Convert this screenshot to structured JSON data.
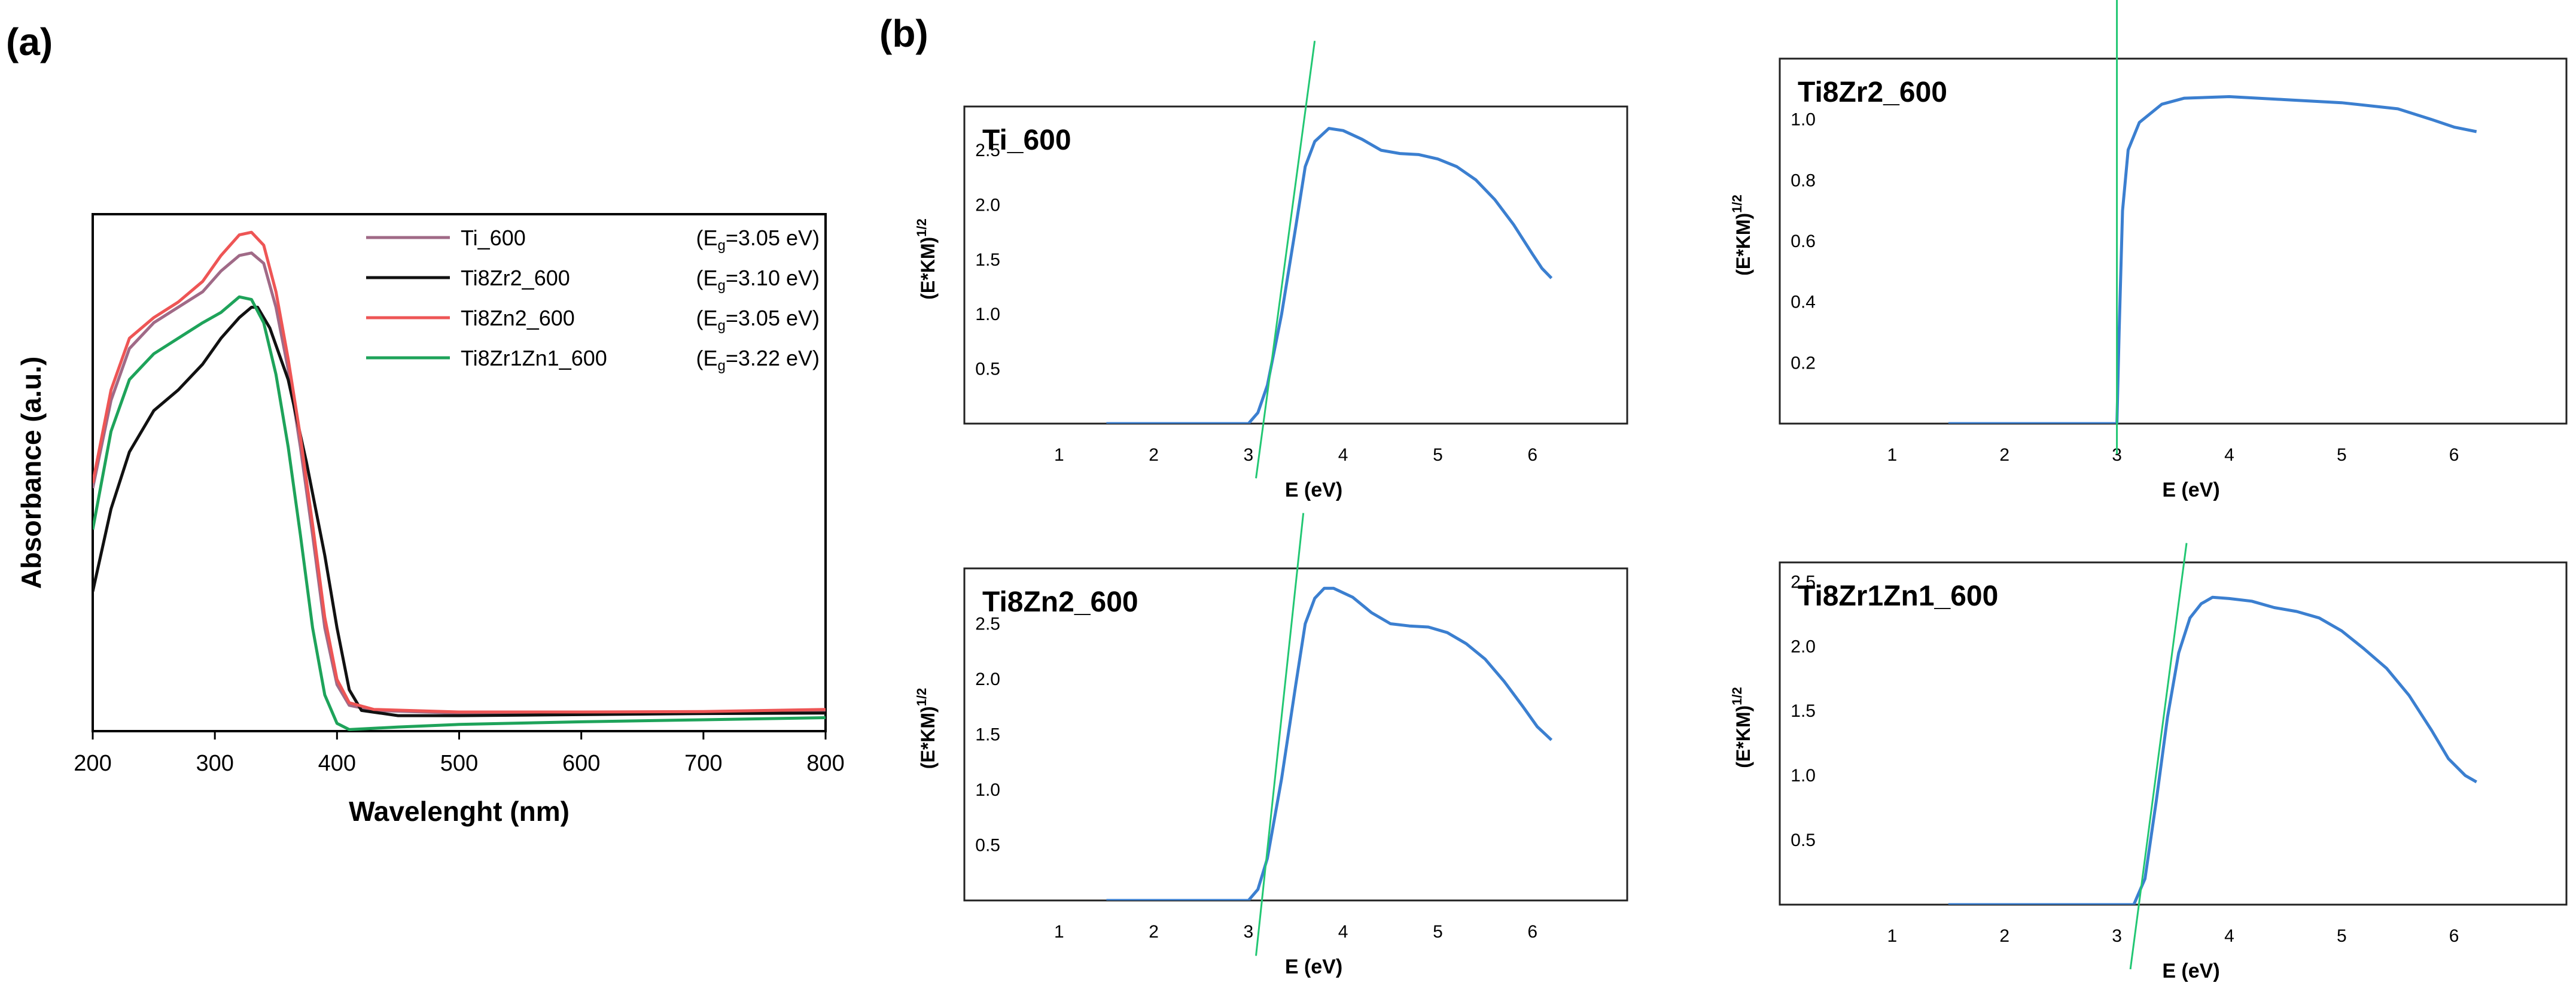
{
  "chart_data": [
    {
      "type": "line",
      "panel_label": "(a)",
      "xlabel": "Wavelenght (nm)",
      "ylabel": "Absorbance (a.u.)",
      "xlim": [
        200,
        800
      ],
      "ylim": [
        0,
        1
      ],
      "xticks": [
        200,
        300,
        400,
        500,
        600,
        700,
        800
      ],
      "legend_position": "top-right",
      "series": [
        {
          "name": "Ti_600",
          "eg_value": "3.05",
          "color": "#a06a87",
          "points": [
            [
              200,
              0.47
            ],
            [
              215,
              0.64
            ],
            [
              230,
              0.74
            ],
            [
              250,
              0.79
            ],
            [
              270,
              0.82
            ],
            [
              290,
              0.85
            ],
            [
              305,
              0.89
            ],
            [
              320,
              0.92
            ],
            [
              330,
              0.925
            ],
            [
              340,
              0.905
            ],
            [
              350,
              0.82
            ],
            [
              360,
              0.7
            ],
            [
              370,
              0.55
            ],
            [
              380,
              0.38
            ],
            [
              390,
              0.2
            ],
            [
              400,
              0.09
            ],
            [
              410,
              0.05
            ],
            [
              430,
              0.04
            ],
            [
              500,
              0.035
            ],
            [
              600,
              0.035
            ],
            [
              700,
              0.037
            ],
            [
              800,
              0.04
            ]
          ]
        },
        {
          "name": "Ti8Zr2_600",
          "eg_value": "3.10",
          "color": "#111111",
          "points": [
            [
              200,
              0.27
            ],
            [
              215,
              0.43
            ],
            [
              230,
              0.54
            ],
            [
              250,
              0.62
            ],
            [
              270,
              0.66
            ],
            [
              290,
              0.71
            ],
            [
              305,
              0.76
            ],
            [
              320,
              0.8
            ],
            [
              330,
              0.82
            ],
            [
              335,
              0.82
            ],
            [
              345,
              0.78
            ],
            [
              360,
              0.68
            ],
            [
              375,
              0.52
            ],
            [
              390,
              0.34
            ],
            [
              400,
              0.2
            ],
            [
              410,
              0.08
            ],
            [
              420,
              0.04
            ],
            [
              450,
              0.03
            ],
            [
              500,
              0.03
            ],
            [
              600,
              0.032
            ],
            [
              700,
              0.034
            ],
            [
              800,
              0.035
            ]
          ]
        },
        {
          "name": "Ti8Zn2_600",
          "eg_value": "3.05",
          "color": "#ee5555",
          "points": [
            [
              200,
              0.48
            ],
            [
              215,
              0.66
            ],
            [
              230,
              0.76
            ],
            [
              250,
              0.8
            ],
            [
              270,
              0.83
            ],
            [
              290,
              0.87
            ],
            [
              305,
              0.92
            ],
            [
              320,
              0.96
            ],
            [
              330,
              0.965
            ],
            [
              340,
              0.94
            ],
            [
              350,
              0.85
            ],
            [
              360,
              0.72
            ],
            [
              370,
              0.57
            ],
            [
              380,
              0.4
            ],
            [
              390,
              0.22
            ],
            [
              400,
              0.1
            ],
            [
              410,
              0.055
            ],
            [
              430,
              0.042
            ],
            [
              500,
              0.037
            ],
            [
              600,
              0.037
            ],
            [
              700,
              0.038
            ],
            [
              800,
              0.042
            ]
          ]
        },
        {
          "name": "Ti8Zr1Zn1_600",
          "eg_value": "3.22",
          "color": "#1ea35a",
          "points": [
            [
              200,
              0.39
            ],
            [
              215,
              0.58
            ],
            [
              230,
              0.68
            ],
            [
              250,
              0.73
            ],
            [
              270,
              0.76
            ],
            [
              290,
              0.79
            ],
            [
              305,
              0.81
            ],
            [
              320,
              0.84
            ],
            [
              330,
              0.835
            ],
            [
              340,
              0.79
            ],
            [
              350,
              0.69
            ],
            [
              360,
              0.55
            ],
            [
              370,
              0.38
            ],
            [
              380,
              0.2
            ],
            [
              390,
              0.07
            ],
            [
              400,
              0.015
            ],
            [
              410,
              0.003
            ],
            [
              450,
              0.008
            ],
            [
              500,
              0.013
            ],
            [
              600,
              0.018
            ],
            [
              700,
              0.022
            ],
            [
              800,
              0.026
            ]
          ]
        }
      ]
    },
    {
      "type": "line",
      "panel_label": "(b)",
      "title": "Ti_600",
      "xlabel": "E (eV)",
      "ylabel": "(E*KM)",
      "ylabel_sup": "1/2",
      "xlim": [
        0,
        7
      ],
      "ylim": [
        0,
        2.9
      ],
      "xticks": [
        1,
        2,
        3,
        4,
        5,
        6
      ],
      "yticks": [
        "0.5",
        "1.0",
        "1.5",
        "2.0",
        "2.5"
      ],
      "fit_line": [
        [
          3.08,
          -0.5
        ],
        [
          3.7,
          3.5
        ]
      ],
      "series": [
        {
          "name": "Ti_600",
          "color": "#3b7fd0",
          "points": [
            [
              1.5,
              0
            ],
            [
              3.0,
              0
            ],
            [
              3.1,
              0.1
            ],
            [
              3.2,
              0.35
            ],
            [
              3.35,
              1.0
            ],
            [
              3.5,
              1.8
            ],
            [
              3.6,
              2.35
            ],
            [
              3.7,
              2.58
            ],
            [
              3.85,
              2.7
            ],
            [
              4.0,
              2.68
            ],
            [
              4.2,
              2.6
            ],
            [
              4.4,
              2.5
            ],
            [
              4.6,
              2.47
            ],
            [
              4.8,
              2.46
            ],
            [
              5.0,
              2.42
            ],
            [
              5.2,
              2.35
            ],
            [
              5.4,
              2.23
            ],
            [
              5.6,
              2.05
            ],
            [
              5.8,
              1.82
            ],
            [
              6.0,
              1.55
            ],
            [
              6.1,
              1.42
            ],
            [
              6.2,
              1.33
            ]
          ]
        }
      ]
    },
    {
      "type": "line",
      "title": "Ti8Zr2_600",
      "xlabel": "E (eV)",
      "ylabel": "(E*KM)",
      "ylabel_sup": "1/2",
      "xlim": [
        0,
        7
      ],
      "ylim": [
        0,
        1.2
      ],
      "xticks": [
        1,
        2,
        3,
        4,
        5,
        6
      ],
      "yticks": [
        "0.2",
        "0.4",
        "0.6",
        "0.8",
        "1.0"
      ],
      "fit_line": [
        [
          3.0,
          -0.1
        ],
        [
          3.0,
          1.6
        ]
      ],
      "series": [
        {
          "name": "Ti8Zr2_600",
          "color": "#3b7fd0",
          "points": [
            [
              1.5,
              0
            ],
            [
              3.0,
              0
            ],
            [
              3.02,
              0.3
            ],
            [
              3.05,
              0.7
            ],
            [
              3.1,
              0.9
            ],
            [
              3.2,
              0.99
            ],
            [
              3.4,
              1.05
            ],
            [
              3.6,
              1.07
            ],
            [
              4.0,
              1.075
            ],
            [
              4.5,
              1.065
            ],
            [
              5.0,
              1.055
            ],
            [
              5.5,
              1.035
            ],
            [
              5.8,
              1.0
            ],
            [
              6.0,
              0.975
            ],
            [
              6.2,
              0.96
            ]
          ]
        }
      ]
    },
    {
      "type": "line",
      "title": "Ti8Zn2_600",
      "xlabel": "E (eV)",
      "ylabel": "(E*KM)",
      "ylabel_sup": "1/2",
      "xlim": [
        0,
        7
      ],
      "ylim": [
        0,
        3.0
      ],
      "xticks": [
        1,
        2,
        3,
        4,
        5,
        6
      ],
      "yticks": [
        "0.5",
        "1.0",
        "1.5",
        "2.0",
        "2.5"
      ],
      "fit_line": [
        [
          3.08,
          -0.5
        ],
        [
          3.58,
          3.5
        ]
      ],
      "series": [
        {
          "name": "Ti8Zn2_600",
          "color": "#3b7fd0",
          "points": [
            [
              1.5,
              0
            ],
            [
              3.0,
              0
            ],
            [
              3.1,
              0.1
            ],
            [
              3.2,
              0.38
            ],
            [
              3.35,
              1.1
            ],
            [
              3.5,
              1.95
            ],
            [
              3.6,
              2.5
            ],
            [
              3.7,
              2.73
            ],
            [
              3.8,
              2.82
            ],
            [
              3.9,
              2.82
            ],
            [
              4.1,
              2.74
            ],
            [
              4.3,
              2.6
            ],
            [
              4.5,
              2.5
            ],
            [
              4.7,
              2.48
            ],
            [
              4.9,
              2.47
            ],
            [
              5.1,
              2.42
            ],
            [
              5.3,
              2.32
            ],
            [
              5.5,
              2.18
            ],
            [
              5.7,
              1.98
            ],
            [
              5.9,
              1.75
            ],
            [
              6.05,
              1.57
            ],
            [
              6.2,
              1.45
            ]
          ]
        }
      ]
    },
    {
      "type": "line",
      "title": "Ti8Zr1Zn1_600",
      "xlabel": "E (eV)",
      "ylabel": "(E*KM)",
      "ylabel_sup": "1/2",
      "xlim": [
        0,
        7
      ],
      "ylim": [
        0,
        2.65
      ],
      "xticks": [
        1,
        2,
        3,
        4,
        5,
        6
      ],
      "yticks": [
        "0.5",
        "1.0",
        "1.5",
        "2.0",
        "2.5"
      ],
      "fit_line": [
        [
          3.12,
          -0.5
        ],
        [
          3.62,
          2.8
        ]
      ],
      "series": [
        {
          "name": "Ti8Zr1Zn1_600",
          "color": "#3b7fd0",
          "points": [
            [
              1.5,
              0
            ],
            [
              3.15,
              0
            ],
            [
              3.25,
              0.2
            ],
            [
              3.35,
              0.8
            ],
            [
              3.45,
              1.45
            ],
            [
              3.55,
              1.95
            ],
            [
              3.65,
              2.22
            ],
            [
              3.75,
              2.33
            ],
            [
              3.85,
              2.38
            ],
            [
              4.0,
              2.37
            ],
            [
              4.2,
              2.35
            ],
            [
              4.4,
              2.3
            ],
            [
              4.6,
              2.27
            ],
            [
              4.8,
              2.22
            ],
            [
              5.0,
              2.12
            ],
            [
              5.2,
              1.98
            ],
            [
              5.4,
              1.83
            ],
            [
              5.6,
              1.62
            ],
            [
              5.8,
              1.35
            ],
            [
              5.95,
              1.13
            ],
            [
              6.1,
              1.0
            ],
            [
              6.2,
              0.95
            ]
          ]
        }
      ]
    }
  ]
}
